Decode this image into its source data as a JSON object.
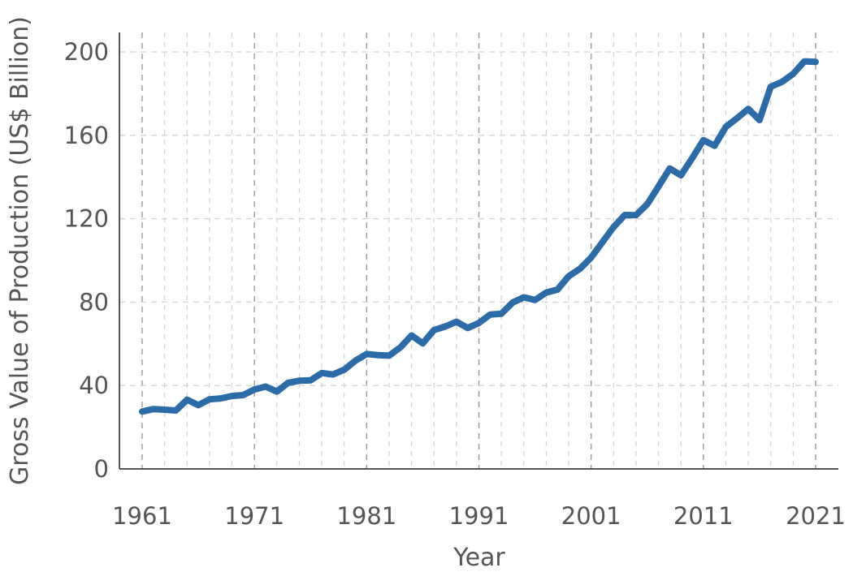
{
  "chart_data": {
    "type": "line",
    "title": "",
    "xlabel": "Year",
    "ylabel": "Gross Value of Production (US$ Billion)",
    "xlim": [
      1960,
      2023
    ],
    "ylim": [
      0,
      205
    ],
    "x_ticks": [
      1961,
      1971,
      1981,
      1991,
      2001,
      2011,
      2021
    ],
    "x_tick_labels": [
      "1961",
      "1971",
      "1981",
      "1991",
      "2001",
      "2011",
      "2021"
    ],
    "y_ticks": [
      0,
      40,
      80,
      120,
      160,
      200
    ],
    "y_tick_labels": [
      "0",
      "40",
      "80",
      "120",
      "160",
      "200"
    ],
    "grid": true,
    "legend": "none",
    "series": [
      {
        "color": "#2b6ca8",
        "x": [
          1961,
          1962,
          1963,
          1964,
          1965,
          1966,
          1967,
          1968,
          1969,
          1970,
          1971,
          1972,
          1973,
          1974,
          1975,
          1976,
          1977,
          1978,
          1979,
          1980,
          1981,
          1982,
          1983,
          1984,
          1985,
          1986,
          1987,
          1988,
          1989,
          1990,
          1991,
          1992,
          1993,
          1994,
          1995,
          1996,
          1997,
          1998,
          1999,
          2000,
          2001,
          2002,
          2003,
          2004,
          2005,
          2006,
          2007,
          2008,
          2009,
          2010,
          2011,
          2012,
          2013,
          2014,
          2015,
          2016,
          2017,
          2018,
          2019,
          2020,
          2021
        ],
        "values": [
          27.5,
          28.7,
          28.4,
          28.0,
          33.2,
          30.6,
          33.4,
          33.8,
          35.0,
          35.4,
          38.1,
          39.5,
          37.1,
          41.3,
          42.3,
          42.5,
          46.0,
          45.3,
          47.6,
          51.9,
          55.1,
          54.6,
          54.3,
          58.3,
          64.0,
          60.2,
          66.6,
          68.3,
          70.6,
          67.6,
          70.0,
          74.0,
          74.4,
          79.8,
          82.3,
          81.0,
          84.6,
          86.0,
          92.4,
          96.0,
          101.4,
          108.7,
          116.0,
          121.8,
          121.7,
          127.0,
          135.5,
          144.1,
          140.8,
          149.0,
          157.7,
          155.0,
          164.1,
          168.2,
          172.7,
          167.3,
          183.3,
          185.6,
          189.5,
          195.5,
          195.2
        ]
      }
    ]
  }
}
